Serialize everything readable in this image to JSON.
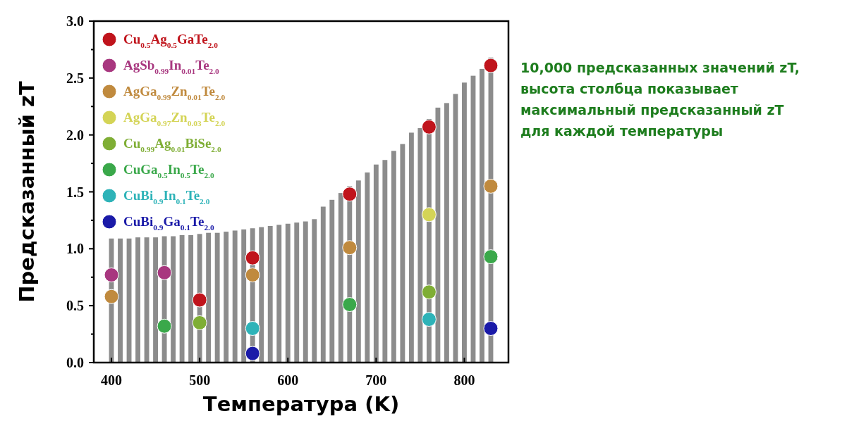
{
  "chart_data": {
    "type": "bar",
    "xlabel": "Температура (K)",
    "ylabel": "Предсказанный zT",
    "xlim": [
      380,
      850
    ],
    "xticks": [
      400,
      500,
      600,
      700,
      800
    ],
    "ylim": [
      0,
      3
    ],
    "yticks": [
      {
        "value": 0,
        "label": "0.0"
      },
      {
        "value": 0.5,
        "label": "0.5"
      },
      {
        "value": 1,
        "label": "1.0"
      },
      {
        "value": 1.5,
        "label": "1.5"
      },
      {
        "value": 2,
        "label": "2.0"
      },
      {
        "value": 2.5,
        "label": "2.5"
      },
      {
        "value": 3,
        "label": "3.0"
      }
    ],
    "x": [
      400,
      410,
      420,
      430,
      440,
      450,
      460,
      470,
      480,
      490,
      500,
      510,
      520,
      530,
      540,
      550,
      560,
      570,
      580,
      590,
      600,
      610,
      620,
      630,
      640,
      650,
      660,
      670,
      680,
      690,
      700,
      710,
      720,
      730,
      740,
      750,
      760,
      770,
      780,
      790,
      800,
      810,
      820,
      830
    ],
    "legend": "top left",
    "marker": "circle",
    "grid": false,
    "annotations": [
      "10,000 предсказанных значений zT,\nвысота столбца показывает\nмаксимальный предсказанный zT\nдля каждой температуры"
    ],
    "series": [
      {
        "color": "#8c8c8c",
        "values": [
          1.09,
          1.09,
          1.09,
          1.1,
          1.1,
          1.1,
          1.11,
          1.11,
          1.12,
          1.12,
          1.13,
          1.14,
          1.14,
          1.15,
          1.16,
          1.17,
          1.18,
          1.19,
          1.2,
          1.21,
          1.22,
          1.23,
          1.24,
          1.26,
          1.37,
          1.43,
          1.49,
          1.55,
          1.6,
          1.67,
          1.74,
          1.78,
          1.86,
          1.92,
          2.02,
          2.06,
          2.14,
          2.24,
          2.28,
          2.36,
          2.46,
          2.52,
          2.58,
          2.68
        ]
      },
      {
        "type": "scatter",
        "name": "Cu$_{0.5}$Ag$_{0.5}$GaTe$_{2.0}$",
        "color": "#c0141c",
        "x": [
          500,
          560,
          670,
          760,
          830
        ],
        "values": [
          0.55,
          0.92,
          1.48,
          2.07,
          2.61
        ]
      },
      {
        "type": "scatter",
        "name": "AgSb$_{0.99}$In$_{0.01}$Te$_{2.0}$",
        "color": "#a8377f",
        "x": [
          400,
          460
        ],
        "values": [
          0.77,
          0.79
        ]
      },
      {
        "type": "scatter",
        "name": "AgGa$_{0.99}$Zn$_{0.01}$Te$_{2.0}$",
        "color": "#c08a3e",
        "x": [
          400,
          560,
          670,
          830
        ],
        "values": [
          0.58,
          0.77,
          1.01,
          1.55
        ]
      },
      {
        "type": "scatter",
        "name": "AgGa$_{0.97}$Zn$_{0.03}$Te$_{2.0}$",
        "color": "#d4d456",
        "x": [
          760
        ],
        "values": [
          1.3
        ]
      },
      {
        "type": "scatter",
        "name": "Cu$_{0.99}$Ag$_{0.01}$BiSe$_{2.0}$",
        "color": "#7fae35",
        "x": [
          500,
          760
        ],
        "values": [
          0.35,
          0.62
        ]
      },
      {
        "type": "scatter",
        "name": "CuGa$_{0.5}$In$_{0.5}$Te$_{2.0}$",
        "color": "#3aa84a",
        "x": [
          460,
          670,
          830
        ],
        "values": [
          0.32,
          0.51,
          0.93
        ]
      },
      {
        "type": "scatter",
        "name": "CuBi$_{0.9}$In$_{0.1}$Te$_{2.0}$",
        "color": "#2eb3b8",
        "x": [
          560,
          760
        ],
        "values": [
          0.3,
          0.38
        ]
      },
      {
        "type": "scatter",
        "name": "CuBi$_{0.9}$Ga$_{0.1}$Te$_{2.0}$",
        "color": "#1a1aa8",
        "x": [
          560,
          830
        ],
        "values": [
          0.08,
          0.3
        ]
      }
    ]
  }
}
